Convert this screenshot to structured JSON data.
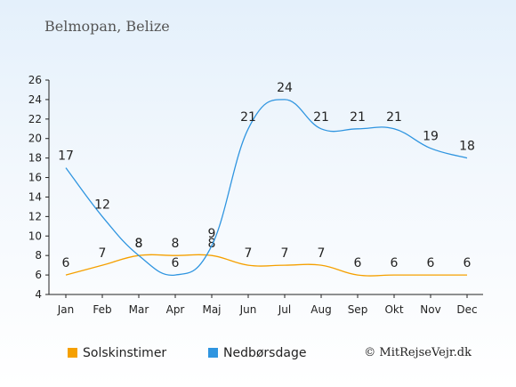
{
  "title": "Belmopan, Belize",
  "credit": "© MitRejseVejr.dk",
  "chart_data": {
    "type": "line",
    "title": "Belmopan, Belize",
    "categories": [
      "Jan",
      "Feb",
      "Mar",
      "Apr",
      "Maj",
      "Jun",
      "Jul",
      "Aug",
      "Sep",
      "Okt",
      "Nov",
      "Dec"
    ],
    "ylim": [
      4,
      26
    ],
    "yticks": [
      4,
      6,
      8,
      10,
      12,
      14,
      16,
      18,
      20,
      22,
      24,
      26
    ],
    "grid": false,
    "legend": "bottom",
    "series": [
      {
        "name": "Solskinstimer",
        "color": "#f5a000",
        "values": [
          6,
          7,
          8,
          8,
          8,
          7,
          7,
          7,
          6,
          6,
          6,
          6
        ]
      },
      {
        "name": "Nedbørsdage",
        "color": "#2f95e0",
        "values": [
          17,
          12,
          8,
          6,
          9,
          21,
          24,
          21,
          21,
          21,
          19,
          18
        ]
      }
    ]
  }
}
